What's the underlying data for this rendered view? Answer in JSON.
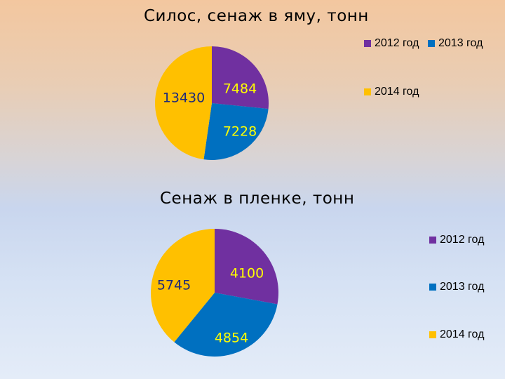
{
  "chart_data": [
    {
      "type": "pie",
      "title": "Силос, сенаж в яму, тонн",
      "categories": [
        "2012 год",
        "2013 год",
        "2014 год"
      ],
      "values": [
        7484,
        7228,
        13430
      ],
      "data_labels": [
        "7484",
        "7228",
        "13430"
      ],
      "colors": [
        "#7030a0",
        "#0070c0",
        "#ffc000"
      ],
      "legend_position": "top-right"
    },
    {
      "type": "pie",
      "title": "Сенаж в пленке, тонн",
      "categories": [
        "2012 год",
        "2013 год",
        "2014 год"
      ],
      "values": [
        4100,
        4854,
        5745
      ],
      "data_labels": [
        "4100",
        "4854",
        "5745"
      ],
      "colors": [
        "#7030a0",
        "#0070c0",
        "#ffc000"
      ],
      "legend_position": "right"
    }
  ]
}
